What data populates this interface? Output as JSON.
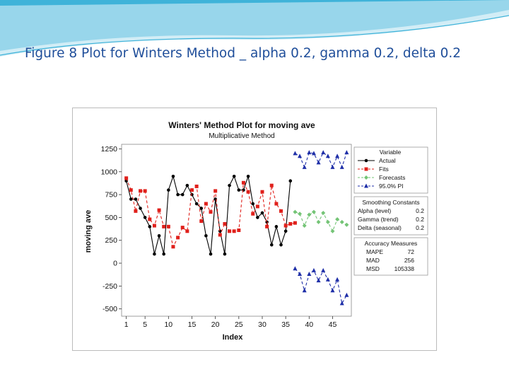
{
  "slide": {
    "title": "Figure 8 Plot for Winters  Method _  alpha 0.2, gamma 0.2, delta 0.2",
    "colors": {
      "title": "#1f4e9a",
      "wave": "#3fb3d9",
      "wave_light": "#bfe6f2"
    }
  },
  "chart_data": {
    "type": "line",
    "title": "Winters' Method Plot for moving ave",
    "subtitle": "Multiplicative Method",
    "xlabel": "Index",
    "ylabel": "moving ave",
    "xlim": [
      0,
      49
    ],
    "ylim": [
      -580,
      1300
    ],
    "xticks": [
      1,
      5,
      10,
      15,
      20,
      25,
      30,
      35,
      40,
      45
    ],
    "yticks": [
      1250,
      1000,
      750,
      500,
      250,
      0,
      -250,
      -500
    ],
    "grid": false,
    "legend_position": "right",
    "legend": {
      "title": "Variable",
      "entries": [
        {
          "label": "Actual",
          "color": "#000000",
          "marker": "circle"
        },
        {
          "label": "Fits",
          "color": "#e0201b",
          "marker": "square"
        },
        {
          "label": "Forecasts",
          "color": "#74c476",
          "marker": "diamond"
        },
        {
          "label": "95.0% PI",
          "color": "#1f2fa8",
          "marker": "triangle"
        }
      ]
    },
    "series": [
      {
        "name": "Actual",
        "color": "#000000",
        "marker": "circle",
        "x": [
          1,
          2,
          3,
          4,
          5,
          6,
          7,
          8,
          9,
          10,
          11,
          12,
          13,
          14,
          15,
          16,
          17,
          18,
          19,
          20,
          21,
          22,
          23,
          24,
          25,
          26,
          27,
          28,
          29,
          30,
          31,
          32,
          33,
          34,
          35,
          36
        ],
        "y": [
          900,
          700,
          700,
          600,
          500,
          400,
          100,
          300,
          100,
          800,
          950,
          750,
          750,
          850,
          750,
          650,
          600,
          300,
          100,
          700,
          350,
          100,
          850,
          950,
          800,
          800,
          950,
          650,
          500,
          550,
          450,
          200,
          400,
          200,
          350,
          900
        ]
      },
      {
        "name": "Fits",
        "color": "#e0201b",
        "marker": "square",
        "x": [
          1,
          2,
          3,
          4,
          5,
          6,
          7,
          8,
          9,
          10,
          11,
          12,
          13,
          14,
          15,
          16,
          17,
          18,
          19,
          20,
          21,
          22,
          23,
          24,
          25,
          26,
          27,
          28,
          29,
          30,
          31,
          32,
          33,
          34,
          35,
          36,
          37
        ],
        "y": [
          930,
          800,
          570,
          790,
          790,
          480,
          410,
          580,
          400,
          400,
          180,
          280,
          390,
          350,
          800,
          840,
          460,
          650,
          560,
          790,
          310,
          430,
          350,
          350,
          360,
          880,
          780,
          540,
          620,
          780,
          400,
          850,
          650,
          570,
          410,
          430,
          440
        ]
      },
      {
        "name": "Forecasts",
        "color": "#74c476",
        "marker": "diamond",
        "x": [
          37,
          38,
          39,
          40,
          41,
          42,
          43,
          44,
          45,
          46,
          47,
          48
        ],
        "y": [
          560,
          540,
          410,
          530,
          560,
          450,
          550,
          450,
          350,
          480,
          450,
          420
        ]
      },
      {
        "name": "95.0% PI (upper)",
        "color": "#1f2fa8",
        "marker": "triangle",
        "x": [
          37,
          38,
          39,
          40,
          41,
          42,
          43,
          44,
          45,
          46,
          47,
          48
        ],
        "y": [
          1200,
          1170,
          1050,
          1210,
          1200,
          1100,
          1210,
          1170,
          1050,
          1170,
          1050,
          1210
        ]
      },
      {
        "name": "95.0% PI (lower)",
        "color": "#1f2fa8",
        "marker": "triangle",
        "x": [
          37,
          38,
          39,
          40,
          41,
          42,
          43,
          44,
          45,
          46,
          47,
          48
        ],
        "y": [
          -60,
          -120,
          -300,
          -120,
          -80,
          -190,
          -80,
          -180,
          -300,
          -180,
          -440,
          -350
        ]
      }
    ],
    "smoothing_constants": {
      "title": "Smoothing Constants",
      "rows": [
        {
          "label": "Alpha (level)",
          "value": "0.2"
        },
        {
          "label": "Gamma (trend)",
          "value": "0.2"
        },
        {
          "label": "Delta (seasonal)",
          "value": "0.2"
        }
      ]
    },
    "accuracy_measures": {
      "title": "Accuracy Measures",
      "rows": [
        {
          "label": "MAPE",
          "value": "72"
        },
        {
          "label": "MAD",
          "value": "256"
        },
        {
          "label": "MSD",
          "value": "105338"
        }
      ]
    }
  }
}
